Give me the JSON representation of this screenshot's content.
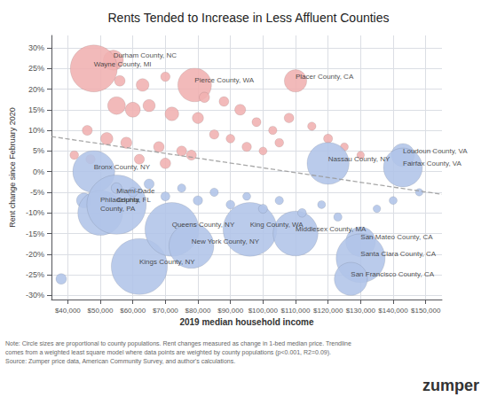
{
  "chart_data": {
    "type": "scatter",
    "title": "Rents Tended to Increase in Less Affluent Counties",
    "xlabel": "2019 median household income",
    "ylabel": "Rent change since February 2020",
    "xlim": [
      35000,
      155000
    ],
    "ylim": [
      -0.31,
      0.33
    ],
    "xticks": [
      {
        "value": 40000,
        "label": "$40,000"
      },
      {
        "value": 50000,
        "label": "$50,000"
      },
      {
        "value": 60000,
        "label": "$60,000"
      },
      {
        "value": 70000,
        "label": "$70,000"
      },
      {
        "value": 80000,
        "label": "$80,000"
      },
      {
        "value": 90000,
        "label": "$90,000"
      },
      {
        "value": 100000,
        "label": "$100,000"
      },
      {
        "value": 110000,
        "label": "$110,000"
      },
      {
        "value": 120000,
        "label": "$120,000"
      },
      {
        "value": 130000,
        "label": "$130,000"
      },
      {
        "value": 140000,
        "label": "$140,000"
      },
      {
        "value": 150000,
        "label": "$150,000"
      }
    ],
    "yticks": [
      {
        "value": -0.3,
        "label": "-30%"
      },
      {
        "value": -0.25,
        "label": "-25%"
      },
      {
        "value": -0.2,
        "label": "-20%"
      },
      {
        "value": -0.15,
        "label": "-15%"
      },
      {
        "value": -0.1,
        "label": "-10%"
      },
      {
        "value": -0.05,
        "label": "-5%"
      },
      {
        "value": 0.0,
        "label": "0%"
      },
      {
        "value": 0.05,
        "label": "5%"
      },
      {
        "value": 0.1,
        "label": "10%"
      },
      {
        "value": 0.15,
        "label": "15%"
      },
      {
        "value": 0.2,
        "label": "20%"
      },
      {
        "value": 0.25,
        "label": "25%"
      },
      {
        "value": 0.3,
        "label": "30%"
      }
    ],
    "grid": true,
    "series": [
      {
        "type": "scatter",
        "color": "#f0b0b0",
        "x": [
          54000,
          48000,
          79000,
          110000,
          55000,
          60000,
          65000,
          72000,
          80000,
          46000,
          52000,
          58000,
          68000,
          75000,
          85000,
          90000,
          95000,
          100000,
          105000,
          42000,
          47000,
          62000,
          70000,
          78000,
          56000,
          63000,
          70000,
          82000,
          88000,
          93000,
          98000,
          103000,
          108000,
          115000,
          120000,
          125000,
          130000
        ],
        "values": [
          0.27,
          0.25,
          0.21,
          0.22,
          0.16,
          0.15,
          0.16,
          0.14,
          0.13,
          0.1,
          0.08,
          0.07,
          0.06,
          0.05,
          0.09,
          0.08,
          0.06,
          0.05,
          0.07,
          0.04,
          0.03,
          0.03,
          0.02,
          0.04,
          0.22,
          0.21,
          0.23,
          0.18,
          0.17,
          0.15,
          0.12,
          0.1,
          0.13,
          0.11,
          0.08,
          0.06,
          0.04
        ],
        "sizes": [
          320000,
          1750000,
          900000,
          400000,
          250000,
          180000,
          120000,
          150000,
          100000,
          80000,
          120000,
          100000,
          90000,
          80000,
          70000,
          60000,
          70000,
          50000,
          60000,
          60000,
          70000,
          80000,
          90000,
          80000,
          90000,
          130000,
          70000,
          85000,
          75000,
          95000,
          65000,
          55000,
          75000,
          55000,
          65000,
          50000,
          45000
        ],
        "labels": [
          "Durham County, NC",
          "Wayne County, MI",
          "Pierce County, WA",
          "Placer County, CA",
          null,
          null,
          null,
          null,
          null,
          null,
          null,
          null,
          null,
          null,
          null,
          null,
          null,
          null,
          null,
          null,
          null,
          null,
          null,
          null,
          null,
          null,
          null,
          null,
          null,
          null,
          null,
          null,
          null,
          null,
          null,
          null,
          null
        ]
      },
      {
        "type": "scatter",
        "color": "#b0c4e8",
        "x": [
          45000,
          48000,
          50000,
          55000,
          62000,
          72000,
          78000,
          96000,
          110000,
          130000,
          130000,
          127000,
          120000,
          143000,
          143000,
          38000,
          55000,
          60000,
          65000,
          70000,
          75000,
          80000,
          85000,
          90000,
          95000,
          100000,
          105000,
          112000,
          118000,
          123000,
          135000,
          140000,
          148000
        ],
        "values": [
          -0.07,
          0.0,
          -0.1,
          -0.08,
          -0.23,
          -0.14,
          -0.18,
          -0.14,
          -0.15,
          -0.17,
          -0.21,
          -0.26,
          0.02,
          0.04,
          0.01,
          -0.26,
          -0.04,
          -0.05,
          -0.03,
          -0.06,
          -0.04,
          -0.07,
          -0.05,
          -0.08,
          -0.06,
          -0.09,
          -0.07,
          -0.1,
          -0.08,
          -0.11,
          -0.09,
          -0.07,
          -0.05
        ],
        "sizes": [
          180000,
          1400000,
          1600000,
          2800000,
          2500000,
          2300000,
          1600000,
          2300000,
          1600000,
          700000,
          1900000,
          870000,
          1400000,
          430000,
          1200000,
          90000,
          90000,
          70000,
          80000,
          65000,
          55000,
          70000,
          55000,
          60000,
          50000,
          65000,
          55000,
          60000,
          50000,
          55000,
          45000,
          50000,
          45000
        ],
        "labels": [
          null,
          "Bronx County, NY",
          "Philadelphia\nCounty, PA",
          "Miami-Dade\nCounty, FL",
          "Kings County, NY",
          "Queens County, NY",
          "New York County, NY",
          "King County, WA",
          "Middlesex County, MA",
          "San Mateo County, CA",
          "Santa Clara County, CA",
          "San Francisco County, CA",
          "Nassau County, NY",
          "Loudoun County, VA",
          "Fairfax County, VA",
          null,
          null,
          null,
          null,
          null,
          null,
          null,
          null,
          null,
          null,
          null,
          null,
          null,
          null,
          null,
          null,
          null,
          null
        ]
      },
      {
        "type": "line",
        "color": "#999999",
        "line_style": "dashed",
        "x": [
          35000,
          155000
        ],
        "values": [
          0.085,
          -0.055
        ]
      }
    ],
    "notes": [
      "Note: Circle sizes are proportional to county populations. Rent changes measured as change in 1-bed median price. Trendline",
      "comes from a weighted least square model where data points are weighted by county populations (p<0.001, R2=0.09).",
      "Source: Zumper price data, American Community Survey, and author's calculations."
    ],
    "credit": "zumper"
  }
}
